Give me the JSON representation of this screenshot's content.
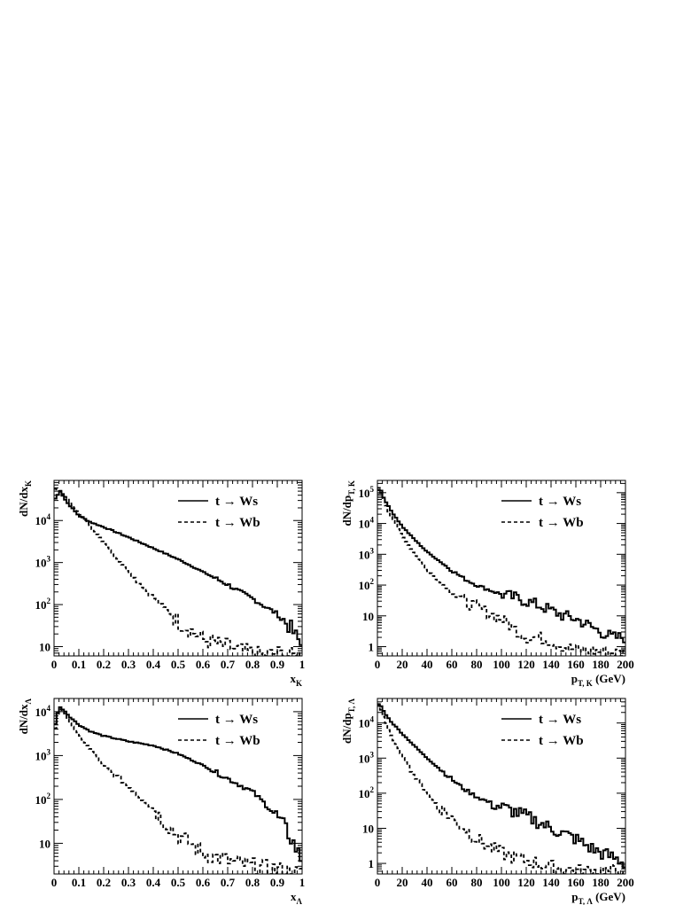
{
  "chart_data": [
    {
      "id": "top-left",
      "type": "line",
      "step": true,
      "title": "",
      "xlabel": "x",
      "xlabel_sub": "K",
      "ylabel": "dN/dx",
      "ylabel_sub": "K",
      "xlim": [
        0,
        1
      ],
      "ylim": [
        6,
        90000
      ],
      "yscale": "log",
      "grid": false,
      "legend_position": "top-right",
      "x_ticks": [
        {
          "value": 0,
          "label": "0"
        },
        {
          "value": 0.1,
          "label": "0.1"
        },
        {
          "value": 0.2,
          "label": "0.2"
        },
        {
          "value": 0.3,
          "label": "0.3"
        },
        {
          "value": 0.4,
          "label": "0.4"
        },
        {
          "value": 0.5,
          "label": "0.5"
        },
        {
          "value": 0.6,
          "label": "0.6"
        },
        {
          "value": 0.7,
          "label": "0.7"
        },
        {
          "value": 0.8,
          "label": "0.8"
        },
        {
          "value": 0.9,
          "label": "0.9"
        },
        {
          "value": 1,
          "label": "1"
        }
      ],
      "y_ticks": [
        {
          "value": 10,
          "label": "10"
        },
        {
          "value": 100,
          "label": "10",
          "sup": "2"
        },
        {
          "value": 1000,
          "label": "10",
          "sup": "3"
        },
        {
          "value": 10000,
          "label": "10",
          "sup": "4"
        }
      ],
      "series": [
        {
          "name": "t → Ws",
          "style": "solid",
          "x": [
            0.0,
            0.025,
            0.05,
            0.1,
            0.15,
            0.2,
            0.3,
            0.4,
            0.5,
            0.6,
            0.7,
            0.75,
            0.8,
            0.85,
            0.9,
            0.95,
            1.0
          ],
          "y": [
            30000,
            50000,
            28000,
            13000,
            9000,
            7000,
            4000,
            2200,
            1200,
            600,
            300,
            200,
            140,
            90,
            60,
            30,
            10
          ]
        },
        {
          "name": "t → Wb",
          "style": "dashed",
          "x": [
            0.0,
            0.025,
            0.05,
            0.1,
            0.15,
            0.2,
            0.3,
            0.4,
            0.5,
            0.55,
            0.6,
            0.65,
            0.7,
            0.75,
            0.8,
            0.85,
            0.9,
            0.95,
            1.0
          ],
          "y": [
            60000,
            50000,
            35000,
            15000,
            7000,
            3000,
            600,
            150,
            40,
            25,
            15,
            12,
            10,
            8,
            7,
            6,
            7,
            6,
            6
          ]
        }
      ]
    },
    {
      "id": "top-right",
      "type": "line",
      "step": true,
      "title": "",
      "xlabel": "p",
      "xlabel_sub": "T, K",
      "xlabel_unit": "(GeV)",
      "ylabel": "dN/dp",
      "ylabel_sub": "T, K",
      "xlim": [
        0,
        200
      ],
      "ylim": [
        0.5,
        250000
      ],
      "yscale": "log",
      "grid": false,
      "legend_position": "top-right",
      "x_ticks": [
        {
          "value": 0,
          "label": "0"
        },
        {
          "value": 20,
          "label": "20"
        },
        {
          "value": 40,
          "label": "40"
        },
        {
          "value": 60,
          "label": "60"
        },
        {
          "value": 80,
          "label": "80"
        },
        {
          "value": 100,
          "label": "100"
        },
        {
          "value": 120,
          "label": "120"
        },
        {
          "value": 140,
          "label": "140"
        },
        {
          "value": 160,
          "label": "160"
        },
        {
          "value": 180,
          "label": "180"
        },
        {
          "value": 200,
          "label": "200"
        }
      ],
      "y_ticks": [
        {
          "value": 1,
          "label": "1"
        },
        {
          "value": 10,
          "label": "10"
        },
        {
          "value": 100,
          "label": "10",
          "sup": "2"
        },
        {
          "value": 1000,
          "label": "10",
          "sup": "3"
        },
        {
          "value": 10000,
          "label": "10",
          "sup": "4"
        },
        {
          "value": 100000,
          "label": "10",
          "sup": "5"
        }
      ],
      "series": [
        {
          "name": "t → Ws",
          "style": "solid",
          "x": [
            0,
            2,
            5,
            10,
            20,
            30,
            40,
            50,
            60,
            70,
            80,
            90,
            100,
            110,
            120,
            130,
            140,
            150,
            160,
            170,
            180,
            190,
            200
          ],
          "y": [
            100000,
            150000,
            70000,
            30000,
            8000,
            3000,
            1200,
            600,
            300,
            160,
            100,
            70,
            50,
            40,
            30,
            22,
            15,
            10,
            8,
            5,
            3,
            2,
            2
          ]
        },
        {
          "name": "t → Wb",
          "style": "dashed",
          "x": [
            0,
            2,
            5,
            10,
            20,
            30,
            40,
            50,
            60,
            70,
            80,
            90,
            100,
            110,
            120,
            130,
            140,
            150,
            160,
            180,
            200
          ],
          "y": [
            150000,
            130000,
            60000,
            20000,
            4000,
            1000,
            300,
            130,
            60,
            30,
            20,
            12,
            8,
            4,
            2,
            2,
            1.5,
            1,
            0.8,
            0.7,
            0.6
          ]
        }
      ]
    },
    {
      "id": "bottom-left",
      "type": "line",
      "step": true,
      "title": "",
      "xlabel": "x",
      "xlabel_sub": "Λ",
      "ylabel": "dN/dx",
      "ylabel_sub": "Λ",
      "xlim": [
        0,
        1
      ],
      "ylim": [
        2,
        20000
      ],
      "yscale": "log",
      "grid": false,
      "legend_position": "top-right",
      "x_ticks": [
        {
          "value": 0,
          "label": "0"
        },
        {
          "value": 0.1,
          "label": "0.1"
        },
        {
          "value": 0.2,
          "label": "0.2"
        },
        {
          "value": 0.3,
          "label": "0.3"
        },
        {
          "value": 0.4,
          "label": "0.4"
        },
        {
          "value": 0.5,
          "label": "0.5"
        },
        {
          "value": 0.6,
          "label": "0.6"
        },
        {
          "value": 0.7,
          "label": "0.7"
        },
        {
          "value": 0.8,
          "label": "0.8"
        },
        {
          "value": 0.9,
          "label": "0.9"
        },
        {
          "value": 1,
          "label": "1"
        }
      ],
      "y_ticks": [
        {
          "value": 10,
          "label": "10"
        },
        {
          "value": 100,
          "label": "10",
          "sup": "2"
        },
        {
          "value": 1000,
          "label": "10",
          "sup": "3"
        },
        {
          "value": 10000,
          "label": "10",
          "sup": "4"
        }
      ],
      "series": [
        {
          "name": "t → Ws",
          "style": "solid",
          "x": [
            0.0,
            0.02,
            0.04,
            0.06,
            0.1,
            0.15,
            0.2,
            0.3,
            0.4,
            0.5,
            0.6,
            0.7,
            0.8,
            0.85,
            0.9,
            0.95,
            1.0
          ],
          "y": [
            4000,
            13000,
            11000,
            8000,
            5000,
            3500,
            2800,
            2100,
            1700,
            1100,
            600,
            300,
            150,
            80,
            40,
            15,
            4
          ]
        },
        {
          "name": "t → Wb",
          "style": "dashed",
          "x": [
            0.0,
            0.02,
            0.04,
            0.06,
            0.1,
            0.15,
            0.2,
            0.3,
            0.4,
            0.45,
            0.5,
            0.55,
            0.6,
            0.7,
            0.8,
            0.9,
            1.0
          ],
          "y": [
            3000,
            12000,
            10000,
            6000,
            3000,
            1300,
            600,
            200,
            60,
            30,
            15,
            10,
            6,
            4,
            3,
            2.5,
            2
          ]
        }
      ]
    },
    {
      "id": "bottom-right",
      "type": "line",
      "step": true,
      "title": "",
      "xlabel": "p",
      "xlabel_sub": "T, Λ",
      "xlabel_unit": "(GeV)",
      "ylabel": "dN/dp",
      "ylabel_sub": "T, Λ",
      "xlim": [
        0,
        200
      ],
      "ylim": [
        0.5,
        50000
      ],
      "yscale": "log",
      "grid": false,
      "legend_position": "top-right",
      "x_ticks": [
        {
          "value": 0,
          "label": "0"
        },
        {
          "value": 20,
          "label": "20"
        },
        {
          "value": 40,
          "label": "40"
        },
        {
          "value": 60,
          "label": "60"
        },
        {
          "value": 80,
          "label": "80"
        },
        {
          "value": 100,
          "label": "100"
        },
        {
          "value": 120,
          "label": "120"
        },
        {
          "value": 140,
          "label": "140"
        },
        {
          "value": 160,
          "label": "160"
        },
        {
          "value": 180,
          "label": "180"
        },
        {
          "value": 200,
          "label": "200"
        }
      ],
      "y_ticks": [
        {
          "value": 1,
          "label": "1"
        },
        {
          "value": 10,
          "label": "10"
        },
        {
          "value": 100,
          "label": "10",
          "sup": "2"
        },
        {
          "value": 1000,
          "label": "10",
          "sup": "3"
        },
        {
          "value": 10000,
          "label": "10",
          "sup": "4"
        }
      ],
      "series": [
        {
          "name": "t → Ws",
          "style": "solid",
          "x": [
            0,
            2,
            5,
            10,
            20,
            30,
            40,
            50,
            60,
            70,
            80,
            90,
            100,
            110,
            120,
            130,
            140,
            150,
            160,
            170,
            180,
            190,
            200
          ],
          "y": [
            30000,
            35000,
            22000,
            12000,
            5000,
            2200,
            1000,
            500,
            250,
            130,
            80,
            55,
            40,
            30,
            22,
            15,
            10,
            7,
            5,
            3,
            2,
            1.5,
            1
          ]
        },
        {
          "name": "t → Wb",
          "style": "dashed",
          "x": [
            0,
            2,
            5,
            10,
            20,
            30,
            40,
            50,
            60,
            70,
            80,
            90,
            100,
            110,
            120,
            130,
            140,
            150,
            160
          ],
          "y": [
            40000,
            30000,
            15000,
            5000,
            1200,
            300,
            100,
            40,
            20,
            10,
            5,
            3,
            2,
            1.5,
            1.2,
            1,
            0.8,
            0.7,
            0.6
          ]
        }
      ]
    }
  ]
}
